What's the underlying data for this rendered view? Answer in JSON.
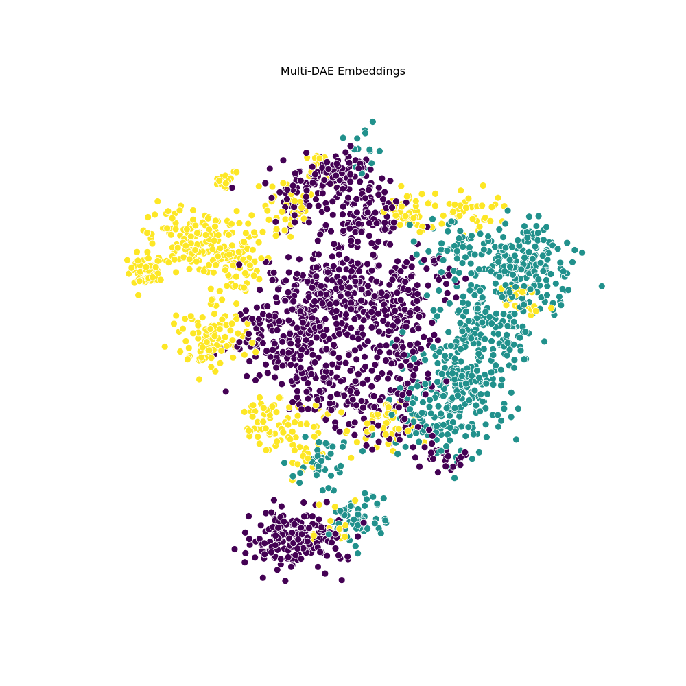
{
  "chart_data": {
    "type": "scatter",
    "title": "Multi-DAE Embeddings",
    "xlabel": "",
    "ylabel": "",
    "axes_visible": false,
    "grid": false,
    "legend": "none",
    "xlim": [
      -80,
      80
    ],
    "ylim": [
      -80,
      80
    ],
    "marker_edge_color": "#ffffff",
    "series": [
      {
        "color": "#440154",
        "clusters": [
          {
            "center": [
              -4,
              52
            ],
            "spread": [
              6,
              4
            ],
            "n": 120
          },
          {
            "center": [
              6,
              40
            ],
            "spread": [
              5,
              4
            ],
            "n": 90
          },
          {
            "center": [
              -16,
              42
            ],
            "spread": [
              5,
              5
            ],
            "n": 50
          },
          {
            "center": [
              -2,
              18
            ],
            "spread": [
              10,
              7
            ],
            "n": 260
          },
          {
            "center": [
              -16,
              8
            ],
            "spread": [
              8,
              8
            ],
            "n": 150
          },
          {
            "center": [
              -24,
              0
            ],
            "spread": [
              6,
              6
            ],
            "n": 70
          },
          {
            "center": [
              14,
              4
            ],
            "spread": [
              6,
              8
            ],
            "n": 120
          },
          {
            "center": [
              12,
              -16
            ],
            "spread": [
              7,
              7
            ],
            "n": 90
          },
          {
            "center": [
              -6,
              -10
            ],
            "spread": [
              7,
              6
            ],
            "n": 80
          },
          {
            "center": [
              -18,
              -56
            ],
            "spread": [
              7,
              5
            ],
            "n": 180
          },
          {
            "center": [
              28,
              -32
            ],
            "spread": [
              4,
              2
            ],
            "n": 30
          },
          {
            "center": [
              24,
              24
            ],
            "spread": [
              5,
              4
            ],
            "n": 30
          }
        ]
      },
      {
        "color": "#21918c",
        "clusters": [
          {
            "center": [
              52,
              26
            ],
            "spread": [
              7,
              7
            ],
            "n": 190
          },
          {
            "center": [
              40,
              8
            ],
            "spread": [
              8,
              8
            ],
            "n": 160
          },
          {
            "center": [
              34,
              -10
            ],
            "spread": [
              8,
              7
            ],
            "n": 160
          },
          {
            "center": [
              24,
              -22
            ],
            "spread": [
              6,
              5
            ],
            "n": 80
          },
          {
            "center": [
              32,
              32
            ],
            "spread": [
              6,
              4
            ],
            "n": 50
          },
          {
            "center": [
              2,
              -50
            ],
            "spread": [
              4,
              4
            ],
            "n": 60
          },
          {
            "center": [
              -10,
              -34
            ],
            "spread": [
              4,
              4
            ],
            "n": 40
          },
          {
            "center": [
              4,
              60
            ],
            "spread": [
              3,
              4
            ],
            "n": 15
          }
        ]
      },
      {
        "color": "#fde725",
        "clusters": [
          {
            "center": [
              -48,
              34
            ],
            "spread": [
              6,
              5
            ],
            "n": 110
          },
          {
            "center": [
              -34,
              26
            ],
            "spread": [
              5,
              6
            ],
            "n": 80
          },
          {
            "center": [
              -62,
              24
            ],
            "spread": [
              3,
              3
            ],
            "n": 50
          },
          {
            "center": [
              -42,
              4
            ],
            "spread": [
              6,
              4
            ],
            "n": 90
          },
          {
            "center": [
              -38,
              52
            ],
            "spread": [
              2,
              2
            ],
            "n": 15
          },
          {
            "center": [
              18,
              42
            ],
            "spread": [
              4,
              3
            ],
            "n": 40
          },
          {
            "center": [
              36,
              42
            ],
            "spread": [
              5,
              3
            ],
            "n": 40
          },
          {
            "center": [
              -26,
              -20
            ],
            "spread": [
              4,
              4
            ],
            "n": 40
          },
          {
            "center": [
              -16,
              -26
            ],
            "spread": [
              5,
              6
            ],
            "n": 50
          },
          {
            "center": [
              8,
              -22
            ],
            "spread": [
              5,
              4
            ],
            "n": 40
          },
          {
            "center": [
              -10,
              56
            ],
            "spread": [
              4,
              3
            ],
            "n": 15
          },
          {
            "center": [
              50,
              14
            ],
            "spread": [
              4,
              3
            ],
            "n": 25
          },
          {
            "center": [
              -4,
              -52
            ],
            "spread": [
              4,
              4
            ],
            "n": 20
          },
          {
            "center": [
              -20,
              42
            ],
            "spread": [
              6,
              5
            ],
            "n": 40
          }
        ]
      }
    ]
  }
}
